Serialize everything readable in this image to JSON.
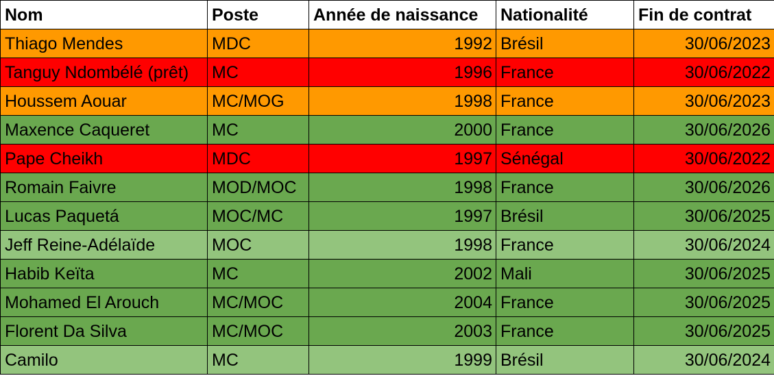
{
  "headers": [
    "Nom",
    "Poste",
    "Année de naissance",
    "Nationalité",
    "Fin de contrat"
  ],
  "colors": {
    "orange": "#ff9900",
    "red": "#ff0000",
    "green": "#6aa84f",
    "lightgreen": "#93c47d"
  },
  "rows": [
    {
      "nom": "Thiago Mendes",
      "poste": "MDC",
      "annee": "1992",
      "nationalite": "Brésil",
      "fin": "30/06/2023",
      "status": "orange"
    },
    {
      "nom": "Tanguy Ndombélé (prêt)",
      "poste": "MC",
      "annee": "1996",
      "nationalite": "France",
      "fin": "30/06/2022",
      "status": "red"
    },
    {
      "nom": "Houssem Aouar",
      "poste": "MC/MOG",
      "annee": "1998",
      "nationalite": "France",
      "fin": "30/06/2023",
      "status": "orange"
    },
    {
      "nom": "Maxence Caqueret",
      "poste": "MC",
      "annee": "2000",
      "nationalite": "France",
      "fin": "30/06/2026",
      "status": "green"
    },
    {
      "nom": "Pape Cheikh",
      "poste": "MDC",
      "annee": "1997",
      "nationalite": "Sénégal",
      "fin": "30/06/2022",
      "status": "red"
    },
    {
      "nom": "Romain Faivre",
      "poste": "MOD/MOC",
      "annee": "1998",
      "nationalite": "France",
      "fin": "30/06/2026",
      "status": "green"
    },
    {
      "nom": "Lucas Paquetá",
      "poste": "MOC/MC",
      "annee": "1997",
      "nationalite": "Brésil",
      "fin": "30/06/2025",
      "status": "green"
    },
    {
      "nom": "Jeff Reine-Adélaïde",
      "poste": "MOC",
      "annee": "1998",
      "nationalite": "France",
      "fin": "30/06/2024",
      "status": "lightgreen"
    },
    {
      "nom": "Habib Keïta",
      "poste": "MC",
      "annee": "2002",
      "nationalite": "Mali",
      "fin": "30/06/2025",
      "status": "green"
    },
    {
      "nom": "Mohamed El Arouch",
      "poste": "MC/MOC",
      "annee": "2004",
      "nationalite": "France",
      "fin": "30/06/2025",
      "status": "green"
    },
    {
      "nom": "Florent Da Silva",
      "poste": "MC/MOC",
      "annee": "2003",
      "nationalite": "France",
      "fin": "30/06/2025",
      "status": "green"
    },
    {
      "nom": "Camilo",
      "poste": "MC",
      "annee": "1999",
      "nationalite": "Brésil",
      "fin": "30/06/2024",
      "status": "lightgreen"
    }
  ]
}
